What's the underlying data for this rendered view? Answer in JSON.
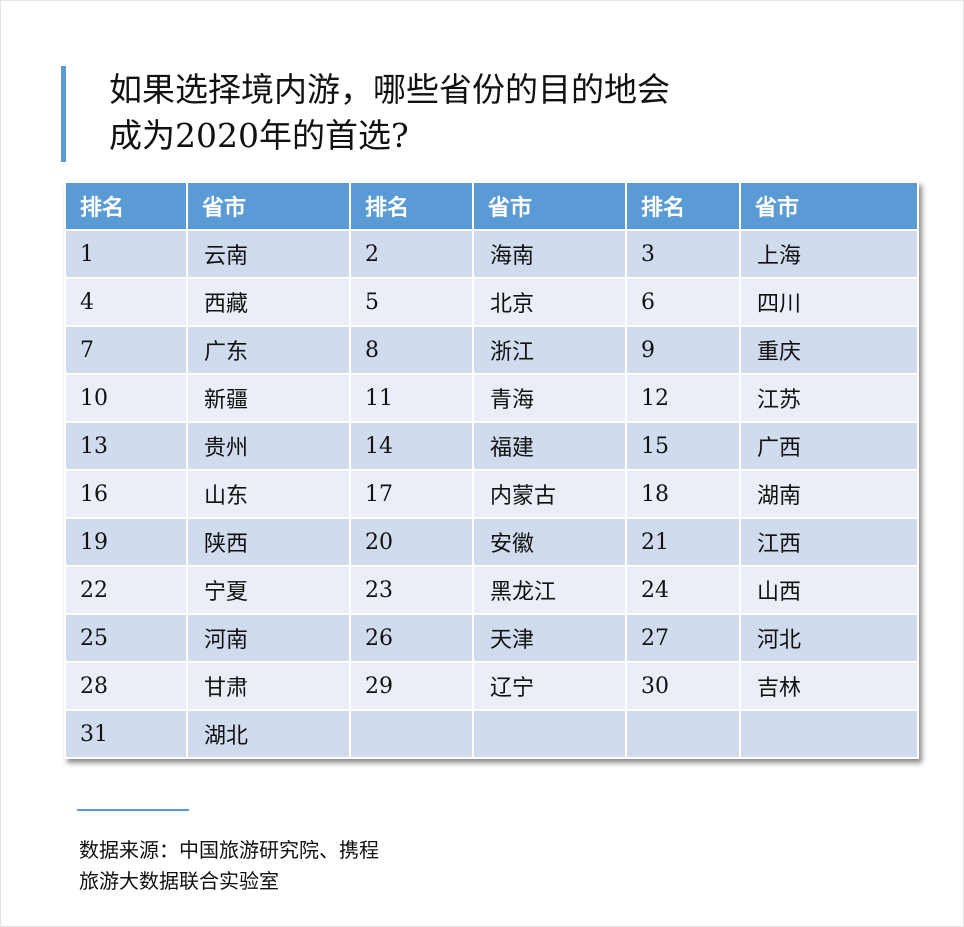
{
  "title_line1": "如果选择境内游，哪些省份的目的地会",
  "title_line2": "成为2020年的首选?",
  "table": {
    "headers": [
      "排名",
      "省市",
      "排名",
      "省市",
      "排名",
      "省市"
    ],
    "rows": [
      [
        "1",
        "云南",
        "2",
        "海南",
        "3",
        "上海"
      ],
      [
        "4",
        "西藏",
        "5",
        "北京",
        "6",
        "四川"
      ],
      [
        "7",
        "广东",
        "8",
        "浙江",
        "9",
        "重庆"
      ],
      [
        "10",
        "新疆",
        "11",
        "青海",
        "12",
        "江苏"
      ],
      [
        "13",
        "贵州",
        "14",
        "福建",
        "15",
        "广西"
      ],
      [
        "16",
        "山东",
        "17",
        "内蒙古",
        "18",
        "湖南"
      ],
      [
        "19",
        "陕西",
        "20",
        "安徽",
        "21",
        "江西"
      ],
      [
        "22",
        "宁夏",
        "23",
        "黑龙江",
        "24",
        "山西"
      ],
      [
        "25",
        "河南",
        "26",
        "天津",
        "27",
        "河北"
      ],
      [
        "28",
        "甘肃",
        "29",
        "辽宁",
        "30",
        "吉林"
      ],
      [
        "31",
        "湖北",
        "",
        "",
        "",
        ""
      ]
    ]
  },
  "source_line1": "数据来源：中国旅游研究院、携程",
  "source_line2": "旅游大数据联合实验室",
  "colors": {
    "accent": "#5b9bd5",
    "row_odd": "#d0dcee",
    "row_even": "#e9eef7"
  }
}
